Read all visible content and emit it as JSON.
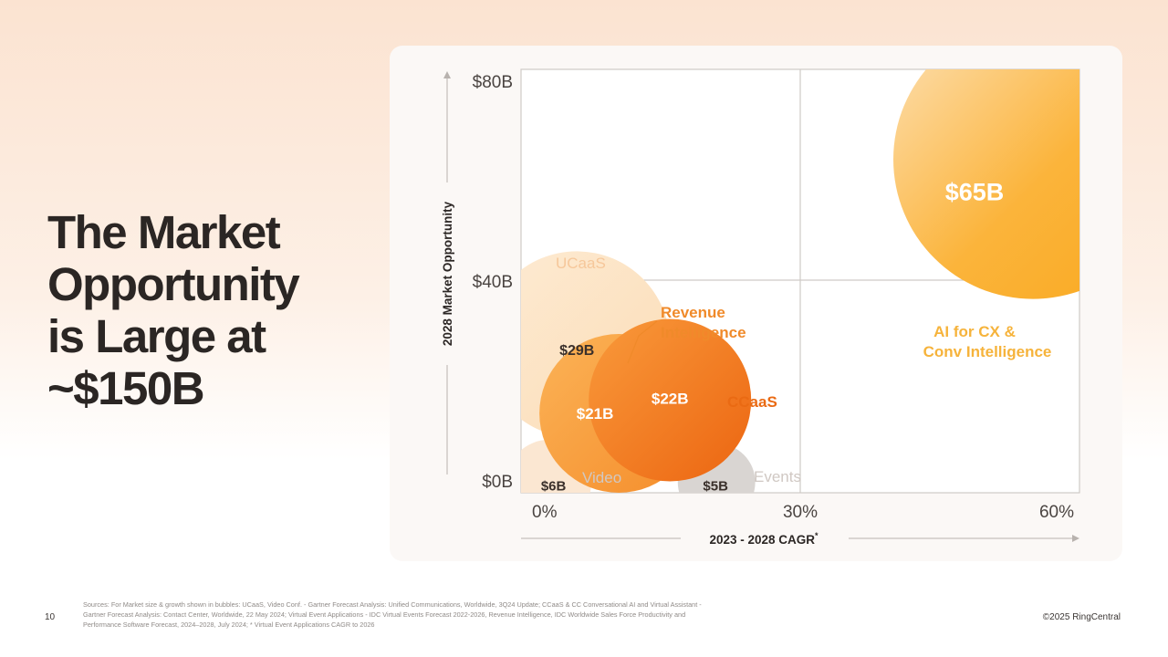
{
  "slide": {
    "headline": "The Market\nOpportunity\nis Large at\n~$150B",
    "page_number": "10",
    "copyright": "©2025 RingCentral",
    "sources": "Sources: For Market size & growth shown in bubbles: UCaaS, Video Conf. - Gartner Forecast Analysis: Unified Communications, Worldwide, 3Q24 Update; CCaaS & CC Conversational AI and Virtual Assistant - Gartner Forecast Analysis: Contact Center, Worldwide, 22 May 2024; Virtual Event Applications - IDC Virtual Events Forecast 2022-2026, Revenue Intelligence, IDC Worldwide Sales Force Productivity and Performance Software Forecast, 2024–2028, July 2024; * Virtual Event Applications CAGR to 2026"
  },
  "colors": {
    "ucaas": "#fde3c3",
    "video": "#fbe7d2",
    "events": "#d9d5d2",
    "revenue": "#f9a042",
    "ccaas": "#f07b1e",
    "ai": "#fbb135",
    "ucaas_label": "#f6c79a",
    "revenue_label": "#f08a2a",
    "ccaas_label": "#ea6a13",
    "ai_label": "#f6b33b",
    "muted_label": "#d0c8c3"
  },
  "chart_data": {
    "type": "bubble",
    "xlabel": "2023 - 2028 CAGR",
    "xlabel_superscript": "*",
    "ylabel": "2028 Market Opportunity",
    "x_ticks": [
      "0%",
      "30%",
      "60%"
    ],
    "y_ticks": [
      "$0B",
      "$40B",
      "$80B"
    ],
    "xlim": [
      0,
      60
    ],
    "ylim": [
      0,
      80
    ],
    "grid": true,
    "series": [
      {
        "name": "UCaaS",
        "x": 6,
        "y": 28,
        "size": 29,
        "bubble_label": "$29B",
        "color_key": "ucaas",
        "label_color_key": "ucaas_label"
      },
      {
        "name": "Video",
        "x": 3,
        "y": 2,
        "size": 6,
        "bubble_label": "$6B",
        "color_key": "video",
        "label_color_key": "muted_label"
      },
      {
        "name": "Events",
        "x": 21,
        "y": 2,
        "size": 5,
        "bubble_label": "$5B",
        "color_key": "events",
        "label_color_key": "muted_label"
      },
      {
        "name": "Revenue Intelligence",
        "x": 10.5,
        "y": 15,
        "size": 21,
        "bubble_label": "$21B",
        "color_key": "revenue",
        "label_color_key": "revenue_label"
      },
      {
        "name": "CCaaS",
        "x": 16,
        "y": 17.5,
        "size": 22,
        "bubble_label": "$22B",
        "color_key": "ccaas",
        "label_color_key": "ccaas_label"
      },
      {
        "name": "AI for CX & Conv Intelligence",
        "x": 55,
        "y": 63,
        "size": 65,
        "bubble_label": "$65B",
        "color_key": "ai",
        "label_color_key": "ai_label"
      }
    ]
  }
}
